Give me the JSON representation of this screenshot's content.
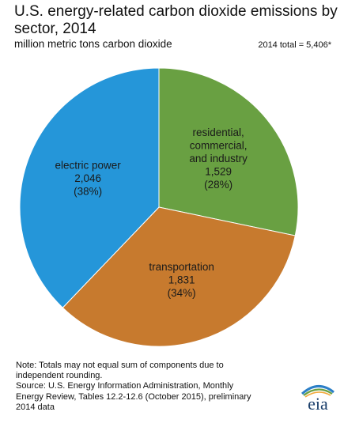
{
  "header": {
    "title": "U.S. energy-related carbon dioxide emissions by sector, 2014",
    "subtitle": "million metric tons carbon dioxide",
    "total": "2014 total = 5,406*"
  },
  "chart_data": {
    "type": "pie",
    "title": "U.S. energy-related carbon dioxide emissions by sector, 2014",
    "units": "million metric tons carbon dioxide",
    "slices": [
      {
        "name": "residential, commercial, and industry",
        "label_lines": [
          "residential,",
          "commercial,",
          "and industry"
        ],
        "value": 1529,
        "value_label": "1,529",
        "percent_label": "(28%)",
        "color": "#69A042"
      },
      {
        "name": "transportation",
        "label_lines": [
          "transportation"
        ],
        "value": 1831,
        "value_label": "1,831",
        "percent_label": "(34%)",
        "color": "#C77A2E"
      },
      {
        "name": "electric power",
        "label_lines": [
          "electric power"
        ],
        "value": 2046,
        "value_label": "2,046",
        "percent_label": "(38%)",
        "color": "#2596D9"
      }
    ]
  },
  "footer": {
    "note_lines": [
      "Note: Totals may not equal sum of components due to",
      "independent rounding.",
      "Source: U.S. Energy Information Administration, Monthly",
      "Energy Review, Tables 12.2-12.6 (October 2015), preliminary",
      "2014 data"
    ],
    "logo_text": "eia",
    "logo_colors": [
      "#2B7FC7",
      "#69A042",
      "#F2A93B"
    ]
  }
}
